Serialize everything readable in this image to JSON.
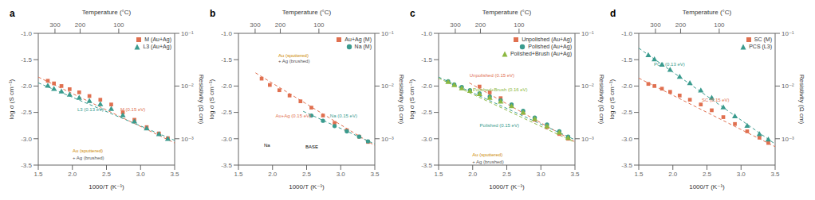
{
  "chart_data": [
    {
      "type": "scatter",
      "title": "a",
      "x_label": "1000/T (K⁻¹)",
      "y_label": "log σ (S cm⁻¹)",
      "y2_label": "Resistivity (Ω cm)",
      "x2_label": "Temperature (°C)",
      "xlim": [
        1.5,
        3.5
      ],
      "xticks": [
        1.5,
        {
          "value": 2.0,
          "label": "2.0"
        },
        2.5,
        {
          "value": 3.0,
          "label": "3.0"
        },
        3.5
      ],
      "ylim": [
        -3.5,
        -1.0
      ],
      "yticks": [
        {
          "value": -1.0,
          "label": "-1.0"
        },
        -1.5,
        {
          "value": -2.0,
          "label": "-2.0"
        },
        -2.5,
        {
          "value": -3.0,
          "label": "-3.0"
        },
        -3.5
      ],
      "y2lim": [
        -3.5,
        -1.0
      ],
      "y2ticks": [
        {
          "value": -1.0,
          "label": "10⁻¹"
        },
        {
          "value": -2.0,
          "label": "10⁻²"
        },
        {
          "value": -3.0,
          "label": "10⁻³"
        }
      ],
      "x2lim": [
        1.5,
        3.5
      ],
      "x2ticks": [
        {
          "value": 1.744744,
          "label": "300"
        },
        {
          "value": 2.113494,
          "label": "200"
        },
        {
          "value": 2.679887,
          "label": "100"
        }
      ],
      "grid": false,
      "legend": "upper right",
      "series": [
        {
          "name": "M (Au+Ag)",
          "color": "#e07050",
          "marker": "square",
          "x": [
            1.64,
            1.73,
            1.84,
            1.96,
            2.1,
            2.25,
            2.41,
            2.57,
            2.74,
            2.91,
            3.09,
            3.27,
            3.4
          ],
          "values": [
            -1.9,
            -1.95,
            -2.0,
            -2.06,
            -2.12,
            -2.19,
            -2.26,
            -2.35,
            -2.5,
            -2.64,
            -2.78,
            -2.9,
            -2.99
          ]
        },
        {
          "name": "L3 (Au+Ag)",
          "color": "#3a9b8e",
          "marker": "triangle",
          "x": [
            1.64,
            1.73,
            1.84,
            1.96,
            2.1,
            2.25,
            2.41,
            2.57,
            2.74,
            2.91,
            3.09,
            3.27,
            3.4
          ],
          "values": [
            -2.0,
            -2.06,
            -2.11,
            -2.17,
            -2.23,
            -2.29,
            -2.35,
            -2.44,
            -2.56,
            -2.68,
            -2.81,
            -2.92,
            -3.01
          ]
        },
        {
          "type": "line",
          "line_style": "dashed",
          "color": "#e07050",
          "x": [
            1.5,
            3.5
          ],
          "values": [
            -1.83,
            -3.08
          ]
        },
        {
          "type": "line",
          "line_style": "dashed",
          "color": "#3a9b8e",
          "x": [
            1.5,
            3.5
          ],
          "values": [
            -1.94,
            -3.03
          ]
        }
      ],
      "annotations": [
        {
          "text": "M (0.15 eV)",
          "x": 2.68,
          "y": -2.44,
          "color": "#e07050"
        },
        {
          "text": "L3 (0.13 eV)",
          "x": 2.05,
          "y": -2.44,
          "color": "#3a9b8e"
        },
        {
          "text": "Au (sputtered)",
          "x": 1.98,
          "y": -3.23,
          "color": "#cc8800"
        },
        {
          "text": "+ Ag (brushed)",
          "x": 1.98,
          "y": -3.36,
          "color": "#555555"
        }
      ]
    },
    {
      "type": "scatter",
      "title": "b",
      "x_label": "1000/T (K⁻¹)",
      "y_label": "log σ (S cm⁻¹)",
      "y2_label": "Resistivity (Ω cm)",
      "x2_label": "Temperature (°C)",
      "xlim": [
        1.5,
        3.5
      ],
      "xticks": [
        1.5,
        {
          "value": 2.0,
          "label": "2.0"
        },
        2.5,
        {
          "value": 3.0,
          "label": "3.0"
        },
        3.5
      ],
      "ylim": [
        -3.5,
        -1.0
      ],
      "yticks": [
        {
          "value": -1.0,
          "label": "-1.0"
        },
        -1.5,
        {
          "value": -2.0,
          "label": "-2.0"
        },
        -2.5,
        {
          "value": -3.0,
          "label": "-3.0"
        },
        -3.5
      ],
      "y2lim": [
        -3.5,
        -1.0
      ],
      "y2ticks": [
        {
          "value": -1.0,
          "label": "10⁻¹"
        },
        {
          "value": -2.0,
          "label": "10⁻²"
        },
        {
          "value": -3.0,
          "label": "10⁻³"
        }
      ],
      "x2lim": [
        1.5,
        3.5
      ],
      "x2ticks": [
        {
          "value": 1.744744,
          "label": "300"
        },
        {
          "value": 2.113494,
          "label": "200"
        },
        {
          "value": 2.679887,
          "label": "100"
        }
      ],
      "grid": false,
      "legend": "upper right",
      "series": [
        {
          "name": "Au+Ag (M)",
          "color": "#e07050",
          "marker": "square",
          "x": [
            1.84,
            1.96,
            2.1,
            2.25,
            2.41,
            2.57,
            2.74,
            2.91,
            3.09,
            3.27,
            3.4
          ],
          "values": [
            -1.86,
            -1.98,
            -2.08,
            -2.18,
            -2.29,
            -2.41,
            -2.56,
            -2.7,
            -2.84,
            -2.96,
            -3.06
          ]
        },
        {
          "name": "Na (M)",
          "color": "#3a9b8e",
          "marker": "circle",
          "x": [
            2.57,
            2.74,
            2.91,
            3.09,
            3.27,
            3.4
          ],
          "values": [
            -2.56,
            -2.66,
            -2.76,
            -2.86,
            -2.96,
            -3.05
          ]
        },
        {
          "type": "line",
          "line_style": "dashed",
          "color": "#e07050",
          "x": [
            1.75,
            3.5
          ],
          "values": [
            -1.75,
            -3.13
          ]
        },
        {
          "type": "line",
          "line_style": "dashed",
          "color": "#3a9b8e",
          "x": [
            2.45,
            3.5
          ],
          "values": [
            -2.48,
            -3.1
          ]
        }
      ],
      "annotations": [
        {
          "text": "Au+Ag (0.15 eV)",
          "x": 2.02,
          "y": -2.56,
          "color": "#e07050"
        },
        {
          "text": "Na (0.15 eV)",
          "x": 2.82,
          "y": -2.56,
          "color": "#3a9b8e"
        },
        {
          "text": "Au (sputtered)",
          "x": 2.06,
          "y": -1.42,
          "color": "#cc8800"
        },
        {
          "text": "+ Ag (brushed)",
          "x": 2.06,
          "y": -1.52,
          "color": "#555555"
        },
        {
          "text": "Na",
          "x": 1.85,
          "y": -3.13,
          "color": "#000000"
        },
        {
          "text": "BASE",
          "x": 2.46,
          "y": -3.15,
          "color": "#000000"
        }
      ]
    },
    {
      "type": "scatter",
      "title": "c",
      "x_label": "1000/T (K⁻¹)",
      "y_label": "log σ (S cm⁻¹)",
      "y2_label": "Resistivity (Ω cm)",
      "x2_label": "Temperature (°C)",
      "xlim": [
        1.5,
        3.5
      ],
      "xticks": [
        1.5,
        {
          "value": 2.0,
          "label": "2.0"
        },
        2.5,
        {
          "value": 3.0,
          "label": "3.0"
        },
        3.5
      ],
      "ylim": [
        -3.5,
        -1.0
      ],
      "yticks": [
        {
          "value": -1.0,
          "label": "-1.0"
        },
        -1.5,
        {
          "value": -2.0,
          "label": "-2.0"
        },
        -2.5,
        {
          "value": -3.0,
          "label": "-3.0"
        },
        -3.5
      ],
      "y2lim": [
        -3.5,
        -1.0
      ],
      "y2ticks": [
        {
          "value": -1.0,
          "label": "10⁻¹"
        },
        {
          "value": -2.0,
          "label": "10⁻²"
        },
        {
          "value": -3.0,
          "label": "10⁻³"
        }
      ],
      "x2lim": [
        1.5,
        3.5
      ],
      "x2ticks": [
        {
          "value": 1.744744,
          "label": "300"
        },
        {
          "value": 2.113494,
          "label": "200"
        },
        {
          "value": 2.679887,
          "label": "100"
        }
      ],
      "grid": false,
      "legend": "upper right",
      "series": [
        {
          "name": "Unpolished (Au+Ag)",
          "color": "#e07050",
          "marker": "square",
          "x": [
            2.1,
            2.25,
            2.41,
            2.57,
            2.74,
            2.91,
            3.09,
            3.27,
            3.4
          ],
          "values": [
            -2.01,
            -2.12,
            -2.23,
            -2.36,
            -2.51,
            -2.64,
            -2.78,
            -2.91,
            -3.0
          ]
        },
        {
          "name": "Polished (Au+Ag)",
          "color": "#3a9b8e",
          "marker": "circle",
          "x": [
            1.64,
            1.73,
            1.84,
            1.96,
            2.1,
            2.25,
            2.41,
            2.57,
            2.74,
            2.91,
            3.09,
            3.27,
            3.4
          ],
          "values": [
            -1.91,
            -1.97,
            -2.02,
            -2.08,
            -2.14,
            -2.2,
            -2.27,
            -2.35,
            -2.47,
            -2.6,
            -2.73,
            -2.86,
            -2.96
          ]
        },
        {
          "name": "Polished+Brush (Au+Ag)",
          "color": "#8cb840",
          "marker": "triangle",
          "x": [
            1.64,
            1.73,
            1.84,
            1.96,
            2.1,
            2.25,
            2.41,
            2.57,
            2.74,
            2.91,
            3.09,
            3.27,
            3.4
          ],
          "values": [
            -1.93,
            -1.99,
            -2.05,
            -2.1,
            -2.16,
            -2.23,
            -2.3,
            -2.39,
            -2.51,
            -2.63,
            -2.77,
            -2.89,
            -2.99
          ]
        },
        {
          "type": "line",
          "line_style": "dashed",
          "color": "#e07050",
          "x": [
            1.95,
            3.5
          ],
          "values": [
            -1.94,
            -3.06
          ]
        },
        {
          "type": "line",
          "line_style": "dashed",
          "color": "#3a9b8e",
          "x": [
            1.5,
            3.5
          ],
          "values": [
            -1.83,
            -3.02
          ]
        },
        {
          "type": "line",
          "line_style": "dashed",
          "color": "#8cb840",
          "x": [
            1.5,
            3.5
          ],
          "values": [
            -1.85,
            -3.07
          ]
        }
      ],
      "annotations": [
        {
          "text": "Unpolished (0.15 eV)",
          "x": 1.93,
          "y": -1.8,
          "color": "#e07050"
        },
        {
          "text": "Polished+Brush (0.16 eV)",
          "x": 1.98,
          "y": -2.07,
          "color": "#8cb840"
        },
        {
          "text": "Polished (0.15 eV)",
          "x": 2.08,
          "y": -2.74,
          "color": "#3a9b8e"
        },
        {
          "text": "Au (sputtered)",
          "x": 1.97,
          "y": -3.31,
          "color": "#cc8800"
        },
        {
          "text": "+ Ag (brushed)",
          "x": 1.97,
          "y": -3.44,
          "color": "#555555"
        }
      ]
    },
    {
      "type": "scatter",
      "title": "d",
      "x_label": "1000/T (K⁻¹)",
      "y_label": "log σ (S cm⁻¹)",
      "y2_label": "Resistivity (Ω cm)",
      "x2_label": "Temperature (°C)",
      "xlim": [
        1.5,
        3.5
      ],
      "xticks": [
        1.5,
        {
          "value": 2.0,
          "label": "2.0"
        },
        2.5,
        {
          "value": 3.0,
          "label": "3.0"
        },
        3.5
      ],
      "ylim": [
        -3.5,
        -1.0
      ],
      "yticks": [
        {
          "value": -1.0,
          "label": "-1.0"
        },
        -1.5,
        {
          "value": -2.0,
          "label": "-2.0"
        },
        -2.5,
        {
          "value": -3.0,
          "label": "-3.0"
        },
        -3.5
      ],
      "y2lim": [
        -3.5,
        -1.0
      ],
      "y2ticks": [
        {
          "value": -1.0,
          "label": "10⁻¹"
        },
        {
          "value": -2.0,
          "label": "10⁻²"
        },
        {
          "value": -3.0,
          "label": "10⁻³"
        }
      ],
      "x2lim": [
        1.5,
        3.5
      ],
      "x2ticks": [
        {
          "value": 1.744744,
          "label": "300"
        },
        {
          "value": 2.113494,
          "label": "200"
        },
        {
          "value": 2.679887,
          "label": "100"
        }
      ],
      "grid": false,
      "legend": "upper right",
      "series": [
        {
          "name": "SC (M)",
          "color": "#e07050",
          "marker": "square",
          "x": [
            1.64,
            1.73,
            1.84,
            1.96,
            2.1,
            2.25,
            2.41,
            2.57,
            2.74,
            2.91,
            3.09,
            3.27,
            3.4
          ],
          "values": [
            -1.96,
            -2.0,
            -2.05,
            -2.11,
            -2.18,
            -2.26,
            -2.35,
            -2.46,
            -2.59,
            -2.72,
            -2.86,
            -2.98,
            -3.08
          ]
        },
        {
          "name": "PCS (L3)",
          "color": "#3a9b8e",
          "marker": "triangle",
          "x": [
            1.64,
            1.73,
            1.84,
            1.96,
            2.1,
            2.25,
            2.41,
            2.57,
            2.74,
            2.91,
            3.09,
            3.27,
            3.4
          ],
          "values": [
            -1.42,
            -1.5,
            -1.6,
            -1.7,
            -1.83,
            -1.95,
            -2.09,
            -2.23,
            -2.41,
            -2.58,
            -2.76,
            -2.92,
            -3.02
          ]
        },
        {
          "type": "line",
          "line_style": "dashed",
          "color": "#e07050",
          "x": [
            1.5,
            3.5
          ],
          "values": [
            -1.85,
            -3.15
          ]
        },
        {
          "type": "line",
          "line_style": "dashed",
          "color": "#3a9b8e",
          "x": [
            1.5,
            3.5
          ],
          "values": [
            -1.28,
            -3.1
          ]
        }
      ],
      "annotations": [
        {
          "text": "SC (0.15 eV)",
          "x": 2.4,
          "y": -2.26,
          "color": "#e07050"
        },
        {
          "text": "PCS (0.13 eV)",
          "x": 1.7,
          "y": -1.58,
          "color": "#3a9b8e"
        }
      ]
    }
  ]
}
